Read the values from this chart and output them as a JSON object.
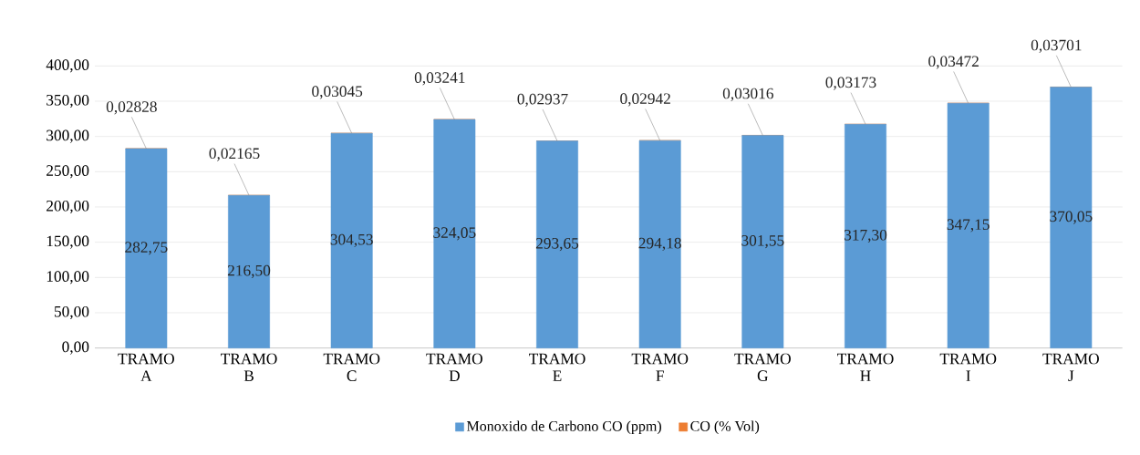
{
  "chart_data": {
    "type": "bar",
    "stacked": true,
    "categories": [
      "TRAMO A",
      "TRAMO B",
      "TRAMO C",
      "TRAMO D",
      "TRAMO E",
      "TRAMO F",
      "TRAMO G",
      "TRAMO H",
      "TRAMO I",
      "TRAMO J"
    ],
    "series": [
      {
        "name": "Monoxido  de Carbono CO (ppm)",
        "color": "#5b9bd5",
        "values": [
          282.75,
          216.5,
          304.53,
          324.05,
          293.65,
          294.18,
          301.55,
          317.3,
          347.15,
          370.05
        ],
        "value_labels": [
          "282,75",
          "216,50",
          "304,53",
          "324,05",
          "293,65",
          "294,18",
          "301,55",
          "317,30",
          "347,15",
          "370,05"
        ]
      },
      {
        "name": "CO (% Vol)",
        "color": "#ed7d31",
        "values": [
          0.02828,
          0.02165,
          0.03045,
          0.03241,
          0.02937,
          0.02942,
          0.03016,
          0.03173,
          0.03472,
          0.03701
        ],
        "value_labels": [
          "0,02828",
          "0,02165",
          "0,03045",
          "0,03241",
          "0,02937",
          "0,02942",
          "0,03016",
          "0,03173",
          "0,03472",
          "0,03701"
        ]
      }
    ],
    "ylim": [
      0,
      400
    ],
    "yticks": [
      {
        "value": 0,
        "label": "0,00"
      },
      {
        "value": 50,
        "label": "50,00"
      },
      {
        "value": 100,
        "label": "100,00"
      },
      {
        "value": 150,
        "label": "150,00"
      },
      {
        "value": 200,
        "label": "200,00"
      },
      {
        "value": 250,
        "label": "250,00"
      },
      {
        "value": 300,
        "label": "300,00"
      },
      {
        "value": 350,
        "label": "350,00"
      },
      {
        "value": 400,
        "label": "400,00"
      }
    ],
    "grid": "y",
    "legend": "bottom"
  }
}
